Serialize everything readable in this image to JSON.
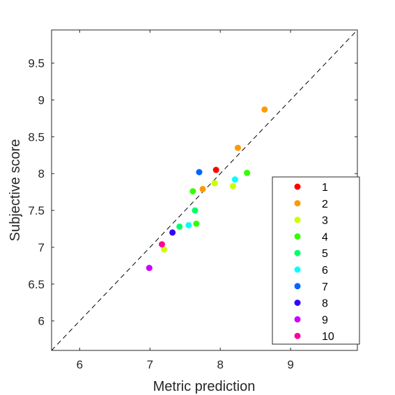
{
  "chart_data": {
    "type": "scatter",
    "title": "",
    "xlabel": "Metric prediction",
    "ylabel": "Subjective score",
    "xlim": [
      5.6,
      9.95
    ],
    "ylim": [
      5.6,
      9.95
    ],
    "x_ticks": [
      {
        "value": 6,
        "label": "6"
      },
      {
        "value": 7,
        "label": "7"
      },
      {
        "value": 8,
        "label": "8"
      },
      {
        "value": 9,
        "label": "9"
      }
    ],
    "y_ticks": [
      {
        "value": 6,
        "label": "6"
      },
      {
        "value": 6.5,
        "label": "6.5"
      },
      {
        "value": 7,
        "label": "7"
      },
      {
        "value": 7.5,
        "label": "7.5"
      },
      {
        "value": 8,
        "label": "8"
      },
      {
        "value": 8.5,
        "label": "8.5"
      },
      {
        "value": 9,
        "label": "9"
      },
      {
        "value": 9.5,
        "label": "9.5"
      }
    ],
    "grid": false,
    "reference_line": "y = x (dashed)",
    "legend_position": "bottom-right",
    "series": [
      {
        "name": "1",
        "color": "#ff0000",
        "points": [
          [
            7.94,
            8.05
          ]
        ]
      },
      {
        "name": "2",
        "color": "#ff9900",
        "points": [
          [
            8.63,
            8.87
          ],
          [
            8.25,
            8.35
          ],
          [
            7.75,
            7.79
          ]
        ]
      },
      {
        "name": "3",
        "color": "#ccff00",
        "points": [
          [
            7.92,
            7.87
          ],
          [
            8.18,
            7.83
          ],
          [
            7.2,
            6.97
          ]
        ]
      },
      {
        "name": "4",
        "color": "#33ff00",
        "points": [
          [
            7.61,
            7.76
          ],
          [
            8.38,
            8.01
          ],
          [
            7.66,
            7.32
          ]
        ]
      },
      {
        "name": "5",
        "color": "#00ff66",
        "points": [
          [
            7.64,
            7.5
          ],
          [
            7.42,
            7.28
          ]
        ]
      },
      {
        "name": "6",
        "color": "#00ffff",
        "points": [
          [
            8.21,
            7.92
          ],
          [
            7.55,
            7.3
          ]
        ]
      },
      {
        "name": "7",
        "color": "#0066ff",
        "points": [
          [
            7.7,
            8.02
          ]
        ]
      },
      {
        "name": "8",
        "color": "#3300ff",
        "points": [
          [
            7.32,
            7.2
          ]
        ]
      },
      {
        "name": "9",
        "color": "#cc00ff",
        "points": [
          [
            6.99,
            6.72
          ]
        ]
      },
      {
        "name": "10",
        "color": "#ff0099",
        "points": [
          [
            7.17,
            7.04
          ]
        ]
      }
    ]
  }
}
